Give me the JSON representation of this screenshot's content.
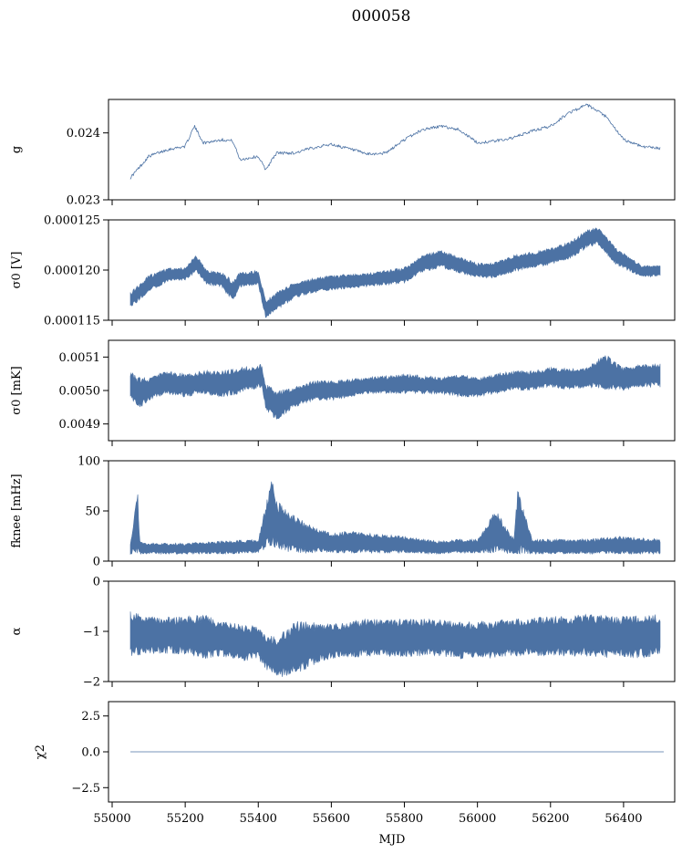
{
  "title": "000058",
  "xlabel": "MJD",
  "colors": {
    "series": "#4c72a4"
  },
  "chart_data": [
    {
      "type": "line",
      "ylabel": "g",
      "ylim": [
        0.023,
        0.0245
      ],
      "yticks": [
        "0.023",
        "0.024"
      ],
      "ytick_values": [
        0.023,
        0.024
      ],
      "x": [
        55050,
        55100,
        55150,
        55200,
        55225,
        55250,
        55300,
        55330,
        55350,
        55400,
        55420,
        55450,
        55500,
        55550,
        55600,
        55650,
        55700,
        55750,
        55800,
        55850,
        55900,
        55950,
        56000,
        56050,
        56100,
        56150,
        56200,
        56250,
        56300,
        56350,
        56400,
        56450,
        56500
      ],
      "y": [
        0.02333,
        0.02365,
        0.02375,
        0.0238,
        0.0241,
        0.02385,
        0.0239,
        0.02388,
        0.0236,
        0.02365,
        0.02345,
        0.0237,
        0.0237,
        0.02378,
        0.02383,
        0.02376,
        0.02368,
        0.0237,
        0.0239,
        0.02405,
        0.0241,
        0.02405,
        0.02385,
        0.02388,
        0.02393,
        0.02403,
        0.0241,
        0.0243,
        0.02442,
        0.02425,
        0.0239,
        0.0238,
        0.02377
      ]
    },
    {
      "type": "area",
      "ylabel": "σ0 [V]",
      "ylim": [
        0.000115,
        0.000125
      ],
      "yticks": [
        "0.000115",
        "0.000120",
        "0.000125"
      ],
      "ytick_values": [
        0.000115,
        0.00012,
        0.000125
      ],
      "x": [
        55050,
        55100,
        55150,
        55200,
        55230,
        55260,
        55300,
        55330,
        55350,
        55400,
        55420,
        55450,
        55500,
        55550,
        55600,
        55700,
        55800,
        55850,
        55900,
        56000,
        56050,
        56100,
        56200,
        56250,
        56300,
        56330,
        56380,
        56450,
        56500
      ],
      "y_low": [
        0.0001162,
        0.0001178,
        0.0001188,
        0.000119,
        0.0001198,
        0.0001185,
        0.0001183,
        0.0001168,
        0.0001183,
        0.0001184,
        0.0001152,
        0.000116,
        0.0001172,
        0.0001177,
        0.000118,
        0.0001183,
        0.0001187,
        0.0001198,
        0.0001202,
        0.0001192,
        0.0001192,
        0.0001198,
        0.0001205,
        0.000121,
        0.0001222,
        0.0001225,
        0.0001205,
        0.0001193,
        0.0001193
      ],
      "y_high": [
        0.0001178,
        0.0001195,
        0.0001202,
        0.0001203,
        0.0001215,
        0.00012,
        0.0001198,
        0.000119,
        0.0001198,
        0.00012,
        0.000117,
        0.0001178,
        0.0001188,
        0.0001192,
        0.0001195,
        0.0001197,
        0.0001203,
        0.0001215,
        0.000122,
        0.0001207,
        0.0001208,
        0.0001215,
        0.0001222,
        0.0001228,
        0.000124,
        0.0001243,
        0.0001222,
        0.0001205,
        0.0001205
      ]
    },
    {
      "type": "area",
      "ylabel": "σ0 [mK]",
      "ylim": [
        0.00485,
        0.00515
      ],
      "yticks": [
        "0.0049",
        "0.0050",
        "0.0051"
      ],
      "ytick_values": [
        0.0049,
        0.005,
        0.0051
      ],
      "x": [
        55050,
        55070,
        55100,
        55150,
        55200,
        55250,
        55300,
        55350,
        55410,
        55420,
        55450,
        55500,
        55550,
        55600,
        55700,
        55800,
        55900,
        55950,
        56000,
        56050,
        56100,
        56150,
        56200,
        56250,
        56300,
        56350,
        56400,
        56450,
        56500
      ],
      "y_low": [
        0.00498,
        0.00494,
        0.00497,
        0.00499,
        0.00498,
        0.00499,
        0.00498,
        0.00499,
        0.00501,
        0.00494,
        0.00491,
        0.00495,
        0.00497,
        0.00497,
        0.00499,
        0.00499,
        0.00499,
        0.00498,
        0.00498,
        0.00499,
        0.005,
        0.005,
        0.00501,
        0.005,
        0.00501,
        0.005,
        0.005,
        0.00501,
        0.00501
      ],
      "y_high": [
        0.00506,
        0.00504,
        0.00504,
        0.00506,
        0.00505,
        0.00506,
        0.00506,
        0.00507,
        0.00508,
        0.00502,
        0.005,
        0.00501,
        0.00503,
        0.00503,
        0.00504,
        0.00505,
        0.00504,
        0.00505,
        0.00504,
        0.00505,
        0.00506,
        0.00506,
        0.00507,
        0.00507,
        0.00507,
        0.00511,
        0.00507,
        0.00508,
        0.00508
      ]
    },
    {
      "type": "area",
      "ylabel": "fknee [mHz]",
      "ylim": [
        0,
        100
      ],
      "yticks": [
        "0",
        "50",
        "100"
      ],
      "ytick_values": [
        0,
        50,
        100
      ],
      "x": [
        55050,
        55070,
        55075,
        55100,
        55200,
        55300,
        55400,
        55420,
        55440,
        55450,
        55470,
        55500,
        55550,
        55600,
        55650,
        55700,
        55800,
        55850,
        55900,
        55950,
        56000,
        56050,
        56100,
        56110,
        56150,
        56200,
        56300,
        56400,
        56500
      ],
      "y_low": [
        7,
        7,
        7,
        7,
        7,
        7,
        8,
        12,
        15,
        12,
        10,
        8,
        8,
        8,
        8,
        8,
        8,
        7,
        7,
        8,
        8,
        8,
        7,
        7,
        7,
        7,
        7,
        7,
        7
      ],
      "y_high": [
        18,
        72,
        20,
        18,
        18,
        20,
        22,
        55,
        88,
        60,
        55,
        45,
        35,
        28,
        30,
        28,
        25,
        22,
        20,
        22,
        22,
        52,
        22,
        72,
        22,
        22,
        22,
        25,
        22
      ]
    },
    {
      "type": "area",
      "ylabel": "α",
      "ylim": [
        -2,
        0
      ],
      "yticks": [
        "−2",
        "−1",
        "0"
      ],
      "ytick_values": [
        -2,
        -1,
        0
      ],
      "x": [
        55050,
        55100,
        55150,
        55200,
        55250,
        55300,
        55350,
        55400,
        55420,
        55450,
        55500,
        55550,
        55600,
        55700,
        55800,
        55900,
        55950,
        56000,
        56100,
        56200,
        56300,
        56400,
        56500
      ],
      "y_low": [
        -1.5,
        -1.45,
        -1.45,
        -1.45,
        -1.55,
        -1.5,
        -1.6,
        -1.55,
        -1.75,
        -1.95,
        -1.85,
        -1.7,
        -1.55,
        -1.5,
        -1.5,
        -1.5,
        -1.55,
        -1.55,
        -1.5,
        -1.5,
        -1.5,
        -1.55,
        -1.5
      ],
      "y_high": [
        -0.6,
        -0.7,
        -0.7,
        -0.7,
        -0.65,
        -0.8,
        -0.85,
        -0.9,
        -1.05,
        -1.1,
        -0.8,
        -0.8,
        -0.85,
        -0.75,
        -0.75,
        -0.75,
        -0.8,
        -0.8,
        -0.75,
        -0.7,
        -0.65,
        -0.7,
        -0.65
      ]
    },
    {
      "type": "line",
      "ylabel": "χ2",
      "ylim": [
        -3.5,
        3.5
      ],
      "yticks": [
        "−2.5",
        "0.0",
        "2.5"
      ],
      "ytick_values": [
        -2.5,
        0,
        2.5
      ],
      "x": [
        55050,
        56510
      ],
      "y": [
        0,
        0
      ]
    }
  ],
  "xaxis": {
    "xlim": [
      54990,
      56540
    ],
    "xticks": [
      "55000",
      "55200",
      "55400",
      "55600",
      "55800",
      "56000",
      "56200",
      "56400"
    ],
    "xtick_values": [
      55000,
      55200,
      55400,
      55600,
      55800,
      56000,
      56200,
      56400
    ]
  }
}
